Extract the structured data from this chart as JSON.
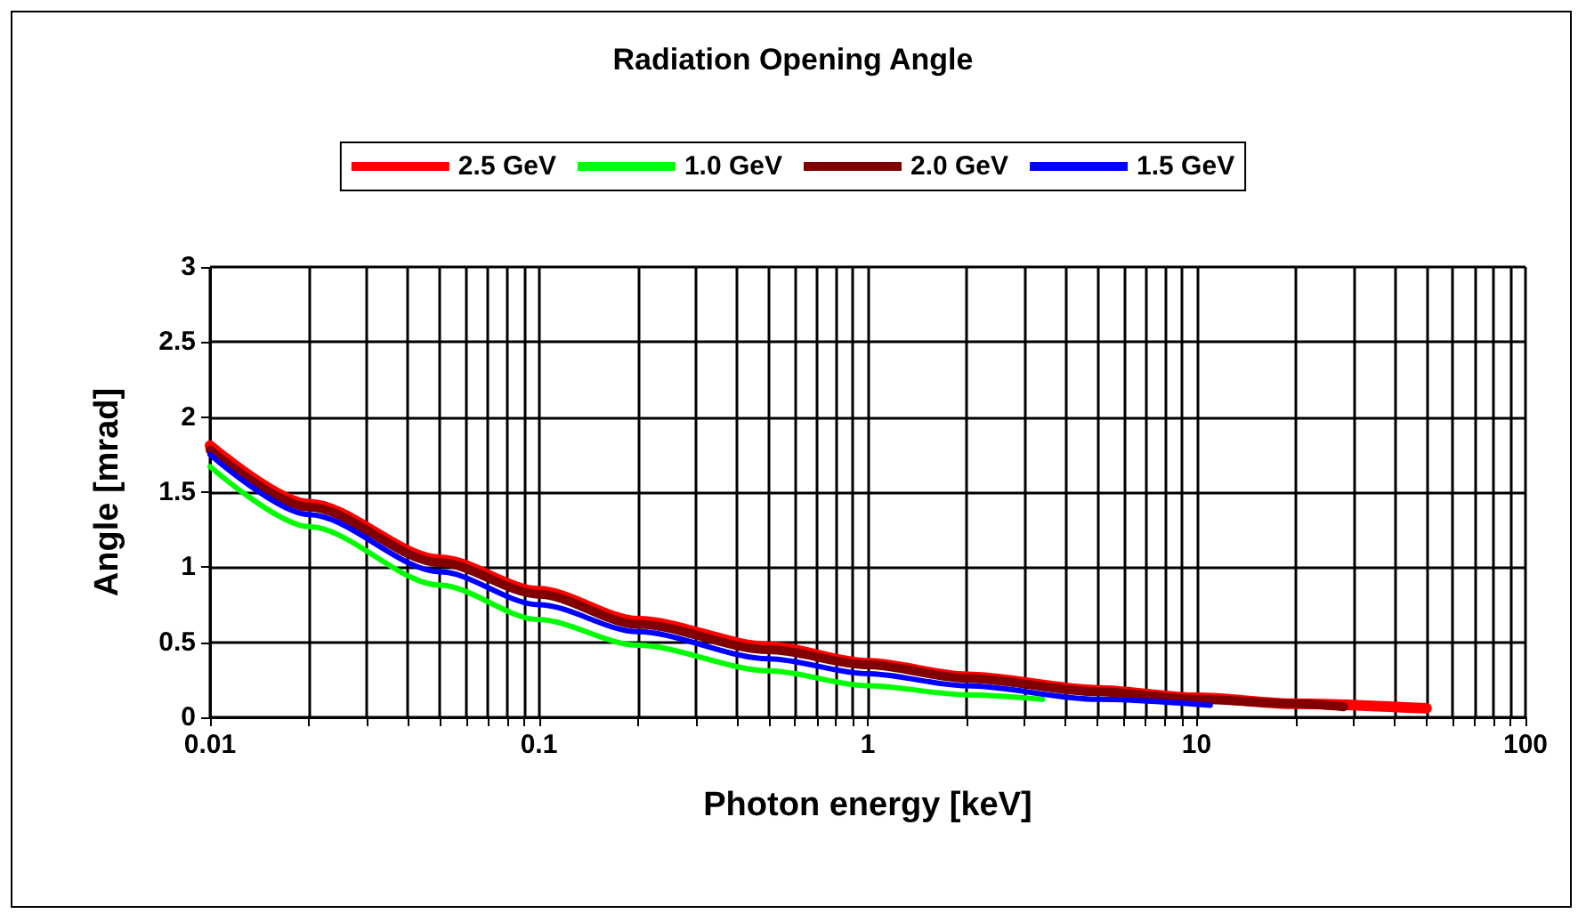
{
  "chart_data": {
    "type": "line",
    "title": "Radiation Opening Angle",
    "xlabel": "Photon energy [keV]",
    "ylabel": "Angle [mrad]",
    "log": "x",
    "grid": true,
    "legend": "top",
    "marker": "none",
    "line_style": "solid",
    "xlim": [
      0.01,
      100
    ],
    "ylim": [
      0,
      3
    ],
    "xticks": [
      0.01,
      {
        "value": 0.02,
        "label": null
      },
      {
        "value": 0.03,
        "label": null
      },
      {
        "value": 0.04,
        "label": null
      },
      {
        "value": 0.05,
        "label": null
      },
      {
        "value": 0.06,
        "label": null
      },
      {
        "value": 0.07,
        "label": null
      },
      {
        "value": 0.08,
        "label": null
      },
      {
        "value": 0.09,
        "label": null
      },
      0.1,
      {
        "value": 0.2,
        "label": null
      },
      {
        "value": 0.3,
        "label": null
      },
      {
        "value": 0.4,
        "label": null
      },
      {
        "value": 0.5,
        "label": null
      },
      {
        "value": 0.6,
        "label": null
      },
      {
        "value": 0.7,
        "label": null
      },
      {
        "value": 0.8,
        "label": null
      },
      {
        "value": 0.9,
        "label": null
      },
      1,
      {
        "value": 2,
        "label": null
      },
      {
        "value": 3,
        "label": null
      },
      {
        "value": 4,
        "label": null
      },
      {
        "value": 5,
        "label": null
      },
      {
        "value": 6,
        "label": null
      },
      {
        "value": 7,
        "label": null
      },
      {
        "value": 8,
        "label": null
      },
      {
        "value": 9,
        "label": null
      },
      10,
      {
        "value": 20,
        "label": null
      },
      {
        "value": 30,
        "label": null
      },
      {
        "value": 40,
        "label": null
      },
      {
        "value": 50,
        "label": null
      },
      {
        "value": 60,
        "label": null
      },
      {
        "value": 70,
        "label": null
      },
      {
        "value": 80,
        "label": null
      },
      {
        "value": 90,
        "label": null
      },
      100
    ],
    "yticks": [
      0,
      0.5,
      1,
      1.5,
      2,
      2.5,
      3
    ],
    "series": [
      {
        "name": "2.5 GeV",
        "color": "#ff0000",
        "x": [
          0.01,
          0.02,
          0.05,
          0.1,
          0.2,
          0.5,
          1,
          2,
          5,
          10,
          20,
          50
        ],
        "values": [
          1.81,
          1.42,
          1.05,
          0.84,
          0.64,
          0.47,
          0.36,
          0.27,
          0.18,
          0.13,
          0.09,
          0.06
        ]
      },
      {
        "name": "1.0 GeV",
        "color": "#00ff00",
        "x": [
          0.01,
          0.02,
          0.05,
          0.1,
          0.2,
          0.5,
          1,
          2,
          3.4
        ],
        "values": [
          1.67,
          1.27,
          0.88,
          0.65,
          0.48,
          0.31,
          0.21,
          0.15,
          0.12
        ]
      },
      {
        "name": "2.0 GeV",
        "color": "#800000",
        "x": [
          0.01,
          0.02,
          0.05,
          0.1,
          0.2,
          0.5,
          1,
          2,
          5,
          10,
          20,
          28
        ],
        "values": [
          1.78,
          1.4,
          1.03,
          0.82,
          0.62,
          0.45,
          0.35,
          0.26,
          0.17,
          0.12,
          0.09,
          0.07
        ]
      },
      {
        "name": "1.5 GeV",
        "color": "#0000ff",
        "x": [
          0.01,
          0.02,
          0.05,
          0.1,
          0.2,
          0.5,
          1,
          2,
          5,
          11
        ],
        "values": [
          1.75,
          1.35,
          0.97,
          0.75,
          0.57,
          0.39,
          0.29,
          0.21,
          0.12,
          0.08
        ]
      }
    ]
  }
}
